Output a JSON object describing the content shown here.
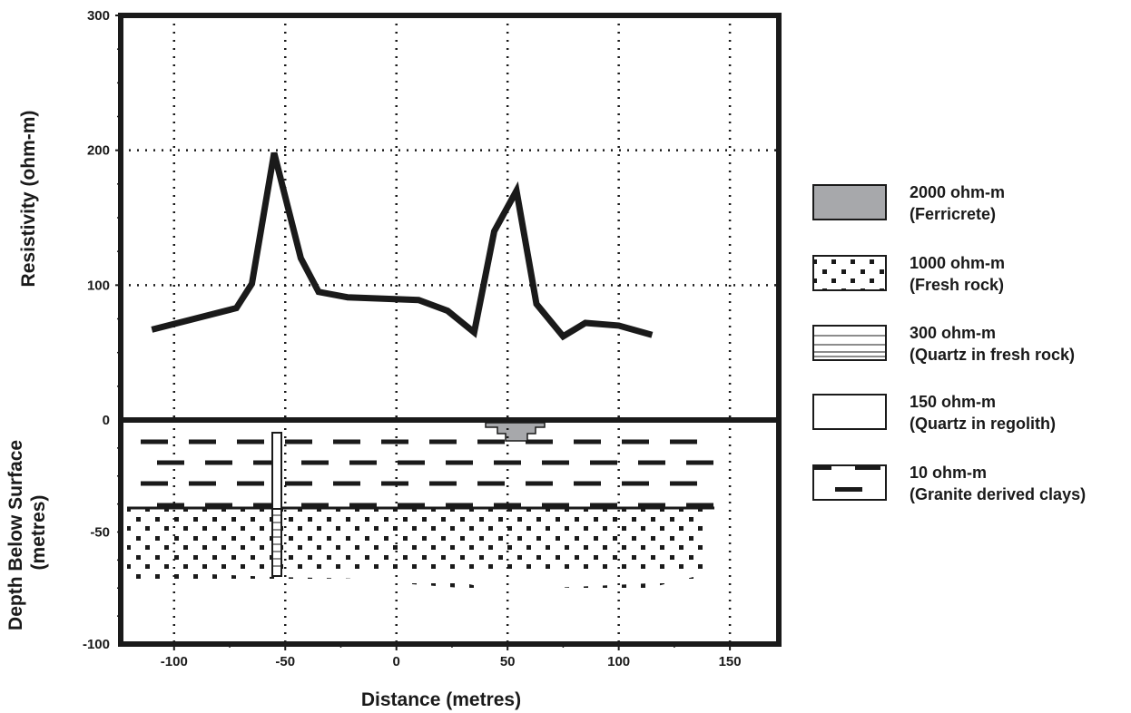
{
  "chart_data": {
    "type": "line",
    "xlabel": "Distance (metres)",
    "x_ticks": [
      "-100",
      "-50",
      "0",
      "50",
      "100",
      "150"
    ],
    "x_tick_values": [
      -100,
      -50,
      0,
      50,
      100,
      150
    ],
    "xlim": [
      -124,
      172
    ],
    "grid": true,
    "resistivity_panel": {
      "ylabel": "Resistivity (ohm-m)",
      "ylim": [
        0,
        300
      ],
      "y_ticks": [
        "300",
        "200",
        "100"
      ],
      "y_tick_values": [
        300,
        200,
        100
      ],
      "series": [
        {
          "x": [
            -110,
            -72,
            -65,
            -55,
            -43,
            -35,
            -22,
            10,
            23,
            35,
            44,
            54,
            63,
            75,
            85,
            100,
            115
          ],
          "y": [
            67,
            83,
            101,
            198,
            120,
            95,
            91,
            89,
            81,
            65,
            140,
            170,
            86,
            62,
            72,
            70,
            63
          ]
        }
      ]
    },
    "depth_panel": {
      "ylabel": "Depth Below Surface (metres)",
      "ylim": [
        -100,
        0
      ],
      "y_ticks": [
        "0",
        "-50",
        "-100"
      ],
      "y_tick_values": [
        0,
        -50,
        -100
      ],
      "zones": [
        {
          "material": "clays",
          "x_range": [
            -124,
            143
          ],
          "depth_range": [
            0,
            -40
          ]
        },
        {
          "material": "fresh_rock",
          "x_range": [
            -124,
            143
          ],
          "depth_range": [
            -40,
            -77
          ]
        },
        {
          "material": "quartz_fresh_rock",
          "x_range": [
            -56,
            -53
          ],
          "depth_range": [
            -40,
            -70
          ]
        },
        {
          "material": "quartz_regolith",
          "x_range": [
            -56,
            -53
          ],
          "depth_range": [
            -6,
            -40
          ]
        },
        {
          "material": "ferricrete",
          "x_range": [
            40,
            68
          ],
          "depth_range": [
            0,
            -10
          ]
        }
      ]
    },
    "legend": {
      "placement": "right",
      "entries": [
        {
          "value": "2000 ohm-m",
          "material": "(Ferricrete)",
          "pattern": "ferricrete"
        },
        {
          "value": "1000 ohm-m",
          "material": "(Fresh rock)",
          "pattern": "fresh_rock"
        },
        {
          "value": "300 ohm-m",
          "material": "(Quartz in fresh rock)",
          "pattern": "quartz_fresh_rock"
        },
        {
          "value": "150 ohm-m",
          "material": "(Quartz in regolith)",
          "pattern": "quartz_regolith"
        },
        {
          "value": "10 ohm-m",
          "material": "(Granite derived clays)",
          "pattern": "clays"
        }
      ]
    },
    "colors": {
      "ink": "#1a1a1a",
      "ferricrete": "#a7a8ab",
      "background": "#ffffff"
    }
  }
}
